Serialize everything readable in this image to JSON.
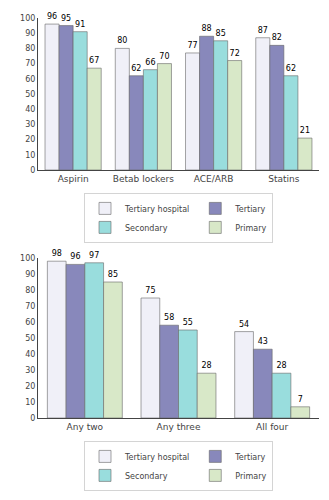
{
  "chart_data": [
    {
      "type": "bar",
      "categories": [
        "Aspirin",
        "Betab lockers",
        "ACE/ARB",
        "Statins"
      ],
      "series": [
        {
          "name": "Tertiary hospital",
          "color": "#f0f0f8",
          "values": [
            96,
            80,
            77,
            87
          ]
        },
        {
          "name": "Tertiary",
          "color": "#8888bb",
          "values": [
            95,
            62,
            88,
            82
          ]
        },
        {
          "name": "Secondary",
          "color": "#99dddd",
          "values": [
            91,
            66,
            85,
            62
          ]
        },
        {
          "name": "Primary",
          "color": "#d8e8c8",
          "values": [
            67,
            70,
            72,
            21
          ]
        }
      ],
      "ylim": [
        0,
        100
      ],
      "yticks": [
        0,
        10,
        20,
        30,
        40,
        50,
        60,
        70,
        80,
        90,
        100
      ],
      "grid": false,
      "legend": "bottom",
      "data_labels": true
    },
    {
      "type": "bar",
      "categories": [
        "Any two",
        "Any three",
        "All four"
      ],
      "series": [
        {
          "name": "Tertiary hospital",
          "color": "#f0f0f8",
          "values": [
            98,
            75,
            54
          ]
        },
        {
          "name": "Tertiary",
          "color": "#8888bb",
          "values": [
            96,
            58,
            43
          ]
        },
        {
          "name": "Secondary",
          "color": "#99dddd",
          "values": [
            97,
            55,
            28
          ]
        },
        {
          "name": "Primary",
          "color": "#d8e8c8",
          "values": [
            85,
            28,
            7
          ]
        }
      ],
      "ylim": [
        0,
        100
      ],
      "yticks": [
        0,
        10,
        20,
        30,
        40,
        50,
        60,
        70,
        80,
        90,
        100
      ],
      "grid": false,
      "legend": "bottom",
      "data_labels": true
    }
  ]
}
